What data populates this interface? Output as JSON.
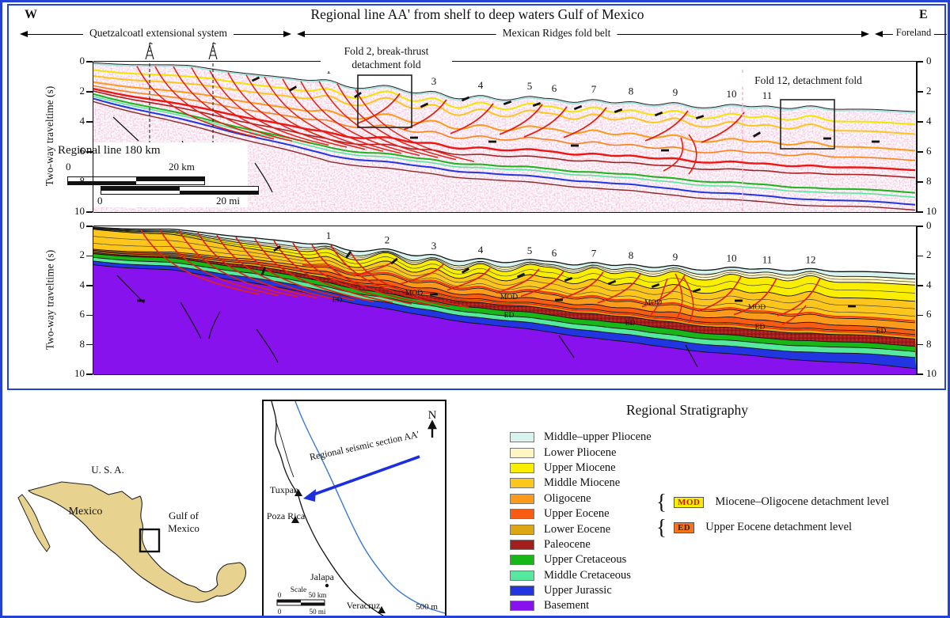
{
  "figure": {
    "title": "Regional line AA' from shelf to deep waters Gulf of Mexico",
    "west_label": "W",
    "east_label": "E",
    "zones": [
      "Quetzalcoatl extensional system",
      "Mexican Ridges fold belt",
      "Foreland"
    ],
    "axis": {
      "label": "Two-way traveltime (s)",
      "ticks": [
        "0",
        "2",
        "4",
        "6",
        "8",
        "10"
      ]
    },
    "folds": [
      "1",
      "2",
      "3",
      "4",
      "5",
      "6",
      "7",
      "8",
      "9",
      "10",
      "11",
      "12"
    ],
    "mod_label": "MOD",
    "ed_label": "ED",
    "top_panel": {
      "scale_title": "Regional line 180 km",
      "zero": "0",
      "km": "20 km",
      "mi": "20 mi",
      "fold2_note_line1": "Fold 2, break-thrust",
      "fold2_note_line2": "detachment fold",
      "fold12_note": "Fold 12, detachment fold"
    }
  },
  "index_map": {
    "usa": "U. S. A.",
    "mexico": "Mexico",
    "gulf_line1": "Gulf of",
    "gulf_line2": "Mexico"
  },
  "location_map": {
    "north": "N",
    "section_label": "Regional seismic section AA'",
    "cities": [
      "Tuxpan",
      "Poza Rica",
      "Jalapa",
      "Veracruz"
    ],
    "depth_label": "500 m",
    "scale_title": "Scale",
    "zero": "0",
    "km": "50 km",
    "mi": "50 mi"
  },
  "stratigraphy": {
    "title": "Regional Stratigraphy",
    "units": [
      {
        "name": "Middle–upper Pliocene",
        "color": "#d8f2ee"
      },
      {
        "name": "Lower Pliocene",
        "color": "#fdf6c3"
      },
      {
        "name": "Upper Miocene",
        "color": "#f9ee00"
      },
      {
        "name": "Middle Miocene",
        "color": "#fcc61d"
      },
      {
        "name": "Oligocene",
        "color": "#fb9a1b"
      },
      {
        "name": "Upper Eocene",
        "color": "#f85c12"
      },
      {
        "name": "Lower Eocene",
        "color": "#dda713"
      },
      {
        "name": "Paleocene",
        "color": "#a31d1d",
        "speckled": true
      },
      {
        "name": "Upper Cretaceous",
        "color": "#17b717"
      },
      {
        "name": "Middle Cretaceous",
        "color": "#55e89e"
      },
      {
        "name": "Upper Jurassic",
        "color": "#2136e0"
      },
      {
        "name": "Basement",
        "color": "#8812ee"
      }
    ],
    "detachments": [
      {
        "abbr": "MOD",
        "label": "Miocene–Oligocene detachment level",
        "box_color": "#f9ee00",
        "abbr_color": "#cc1111"
      },
      {
        "abbr": "ED",
        "label": "Upper Eocene detachment level",
        "box_color": "#f97318",
        "abbr_color": "#222222"
      }
    ]
  }
}
